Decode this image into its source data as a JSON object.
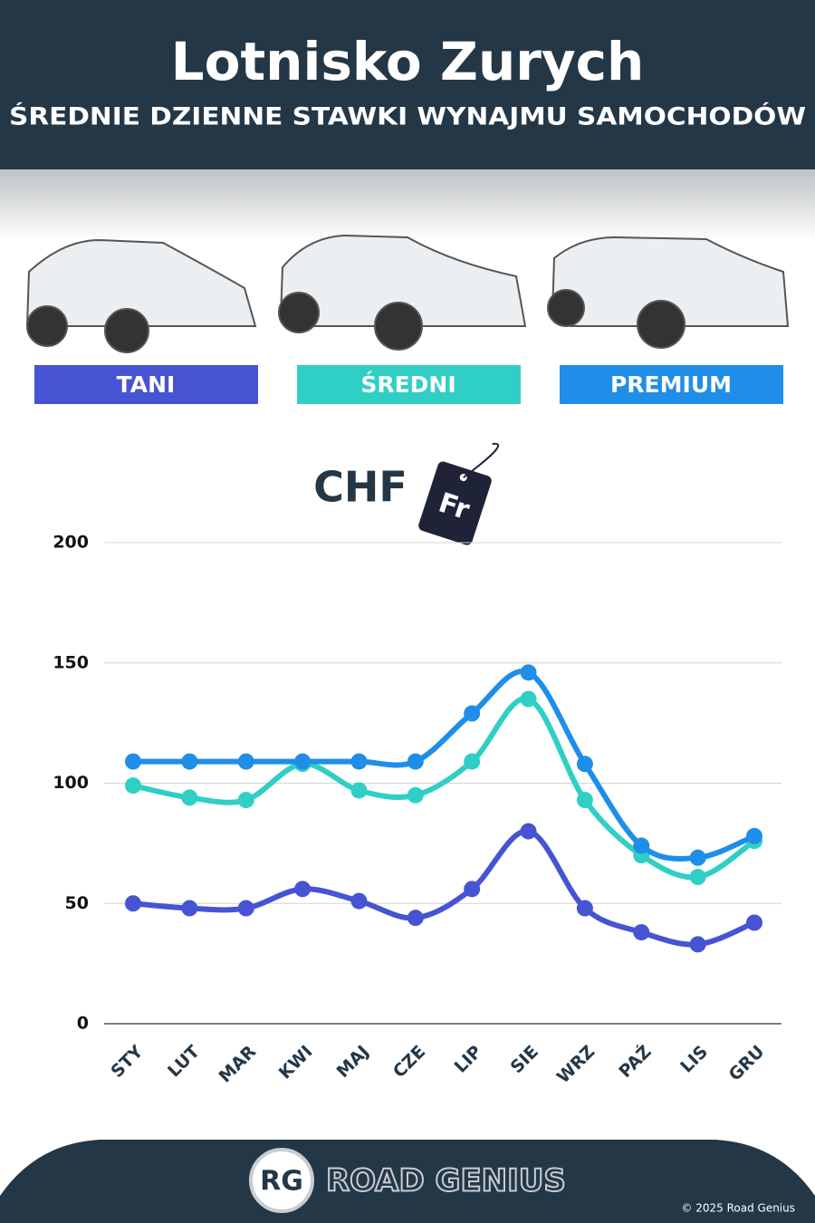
{
  "chart_data": {
    "type": "line",
    "title": "Lotnisko Zurych",
    "subtitle": "ŚREDNIE DZIENNE STAWKI WYNAJMU SAMOCHODÓW",
    "currency": "CHF",
    "tag": "Fr",
    "categories": [
      "STY",
      "LUT",
      "MAR",
      "KWI",
      "MAJ",
      "CZE",
      "LIP",
      "SIE",
      "WRZ",
      "PAŹ",
      "LIS",
      "GRU"
    ],
    "series": [
      {
        "name": "TANI",
        "color": "#4654d4",
        "values": [
          50,
          48,
          48,
          56,
          51,
          44,
          56,
          80,
          48,
          38,
          33,
          42
        ]
      },
      {
        "name": "ŚREDNI",
        "color": "#2fcfc6",
        "values": [
          99,
          94,
          93,
          108,
          97,
          95,
          109,
          135,
          93,
          70,
          61,
          76
        ]
      },
      {
        "name": "PREMIUM",
        "color": "#1f8ee8",
        "values": [
          109,
          109,
          109,
          109,
          109,
          109,
          129,
          146,
          108,
          74,
          69,
          78
        ]
      }
    ],
    "ylim": [
      0,
      200
    ],
    "yticks": [
      0,
      50,
      100,
      150,
      200
    ],
    "grid": true
  },
  "footer": {
    "logo": "RG",
    "brand": "ROAD GENIUS",
    "copyright": "© 2025 Road Genius"
  }
}
